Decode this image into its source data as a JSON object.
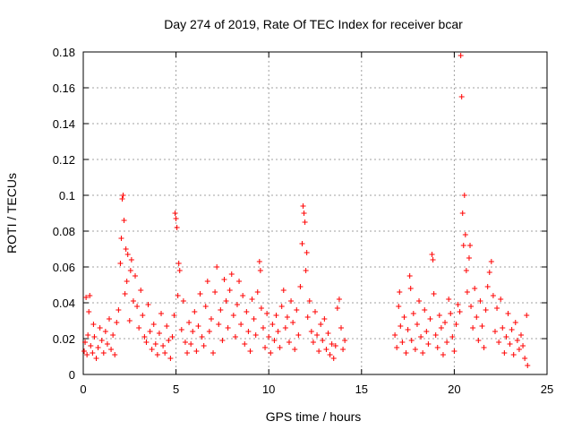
{
  "chart_data": {
    "type": "scatter",
    "title": "Day 274 of 2019, Rate Of TEC Index for receiver bcar",
    "xlabel": "GPS time / hours",
    "ylabel": "ROTI / TECUs",
    "xlim": [
      0,
      25
    ],
    "ylim": [
      0,
      0.18
    ],
    "xticks": [
      0,
      5,
      10,
      15,
      20,
      25
    ],
    "xtick_labels": [
      "0",
      "5",
      "10",
      "15",
      "20",
      "25"
    ],
    "yticks": [
      0,
      0.02,
      0.04,
      0.06,
      0.08,
      0.1,
      0.12,
      0.14,
      0.16,
      0.18
    ],
    "ytick_labels": [
      "0",
      "0.02",
      "0.04",
      "0.06",
      "0.08",
      "0.1",
      "0.12",
      "0.14",
      "0.16",
      "0.18"
    ],
    "grid": true,
    "marker": "plus",
    "color": "#ff0000",
    "data_gap_hours": [
      14.2,
      16.7
    ],
    "series": [
      {
        "name": "ROTI",
        "points": [
          [
            0.05,
            0.013
          ],
          [
            0.1,
            0.018
          ],
          [
            0.15,
            0.043
          ],
          [
            0.2,
            0.011
          ],
          [
            0.25,
            0.022
          ],
          [
            0.3,
            0.035
          ],
          [
            0.35,
            0.044
          ],
          [
            0.4,
            0.016
          ],
          [
            0.5,
            0.012
          ],
          [
            0.55,
            0.028
          ],
          [
            0.6,
            0.021
          ],
          [
            0.7,
            0.009
          ],
          [
            0.8,
            0.015
          ],
          [
            0.9,
            0.026
          ],
          [
            1.0,
            0.019
          ],
          [
            1.1,
            0.012
          ],
          [
            1.2,
            0.024
          ],
          [
            1.3,
            0.017
          ],
          [
            1.4,
            0.031
          ],
          [
            1.5,
            0.014
          ],
          [
            1.6,
            0.022
          ],
          [
            1.7,
            0.011
          ],
          [
            1.8,
            0.029
          ],
          [
            1.9,
            0.036
          ],
          [
            2.0,
            0.062
          ],
          [
            2.05,
            0.076
          ],
          [
            2.1,
            0.098
          ],
          [
            2.15,
            0.1
          ],
          [
            2.2,
            0.086
          ],
          [
            2.25,
            0.045
          ],
          [
            2.3,
            0.07
          ],
          [
            2.35,
            0.052
          ],
          [
            2.4,
            0.067
          ],
          [
            2.5,
            0.03
          ],
          [
            2.55,
            0.058
          ],
          [
            2.6,
            0.064
          ],
          [
            2.7,
            0.041
          ],
          [
            2.8,
            0.055
          ],
          [
            2.9,
            0.038
          ],
          [
            3.0,
            0.026
          ],
          [
            3.1,
            0.047
          ],
          [
            3.2,
            0.033
          ],
          [
            3.3,
            0.021
          ],
          [
            3.4,
            0.018
          ],
          [
            3.5,
            0.039
          ],
          [
            3.6,
            0.024
          ],
          [
            3.7,
            0.014
          ],
          [
            3.8,
            0.028
          ],
          [
            3.9,
            0.017
          ],
          [
            4.0,
            0.011
          ],
          [
            4.1,
            0.023
          ],
          [
            4.2,
            0.034
          ],
          [
            4.3,
            0.016
          ],
          [
            4.4,
            0.012
          ],
          [
            4.5,
            0.027
          ],
          [
            4.6,
            0.019
          ],
          [
            4.7,
            0.009
          ],
          [
            4.8,
            0.021
          ],
          [
            4.9,
            0.033
          ],
          [
            4.95,
            0.09
          ],
          [
            5.0,
            0.087
          ],
          [
            5.05,
            0.082
          ],
          [
            5.1,
            0.044
          ],
          [
            5.15,
            0.062
          ],
          [
            5.2,
            0.058
          ],
          [
            5.3,
            0.025
          ],
          [
            5.4,
            0.041
          ],
          [
            5.5,
            0.018
          ],
          [
            5.6,
            0.012
          ],
          [
            5.7,
            0.029
          ],
          [
            5.8,
            0.017
          ],
          [
            5.9,
            0.024
          ],
          [
            6.0,
            0.035
          ],
          [
            6.1,
            0.013
          ],
          [
            6.2,
            0.027
          ],
          [
            6.3,
            0.045
          ],
          [
            6.4,
            0.021
          ],
          [
            6.5,
            0.016
          ],
          [
            6.6,
            0.038
          ],
          [
            6.7,
            0.052
          ],
          [
            6.8,
            0.024
          ],
          [
            6.9,
            0.031
          ],
          [
            7.0,
            0.012
          ],
          [
            7.1,
            0.046
          ],
          [
            7.2,
            0.06
          ],
          [
            7.3,
            0.028
          ],
          [
            7.4,
            0.036
          ],
          [
            7.5,
            0.019
          ],
          [
            7.6,
            0.053
          ],
          [
            7.7,
            0.041
          ],
          [
            7.8,
            0.026
          ],
          [
            7.9,
            0.047
          ],
          [
            8.0,
            0.056
          ],
          [
            8.1,
            0.033
          ],
          [
            8.2,
            0.021
          ],
          [
            8.3,
            0.039
          ],
          [
            8.4,
            0.052
          ],
          [
            8.5,
            0.028
          ],
          [
            8.6,
            0.044
          ],
          [
            8.7,
            0.017
          ],
          [
            8.8,
            0.035
          ],
          [
            8.9,
            0.024
          ],
          [
            9.0,
            0.013
          ],
          [
            9.1,
            0.042
          ],
          [
            9.2,
            0.031
          ],
          [
            9.3,
            0.022
          ],
          [
            9.4,
            0.046
          ],
          [
            9.5,
            0.063
          ],
          [
            9.55,
            0.058
          ],
          [
            9.6,
            0.037
          ],
          [
            9.7,
            0.026
          ],
          [
            9.8,
            0.015
          ],
          [
            9.9,
            0.034
          ],
          [
            10.0,
            0.021
          ],
          [
            10.1,
            0.012
          ],
          [
            10.2,
            0.028
          ],
          [
            10.3,
            0.019
          ],
          [
            10.4,
            0.033
          ],
          [
            10.5,
            0.024
          ],
          [
            10.6,
            0.015
          ],
          [
            10.7,
            0.038
          ],
          [
            10.8,
            0.047
          ],
          [
            10.9,
            0.026
          ],
          [
            11.0,
            0.032
          ],
          [
            11.1,
            0.018
          ],
          [
            11.2,
            0.041
          ],
          [
            11.3,
            0.029
          ],
          [
            11.4,
            0.014
          ],
          [
            11.5,
            0.036
          ],
          [
            11.6,
            0.022
          ],
          [
            11.7,
            0.049
          ],
          [
            11.8,
            0.073
          ],
          [
            11.85,
            0.094
          ],
          [
            11.9,
            0.09
          ],
          [
            11.95,
            0.085
          ],
          [
            12.0,
            0.058
          ],
          [
            12.05,
            0.068
          ],
          [
            12.1,
            0.032
          ],
          [
            12.2,
            0.041
          ],
          [
            12.3,
            0.024
          ],
          [
            12.4,
            0.018
          ],
          [
            12.5,
            0.035
          ],
          [
            12.6,
            0.022
          ],
          [
            12.7,
            0.013
          ],
          [
            12.8,
            0.028
          ],
          [
            12.9,
            0.019
          ],
          [
            13.0,
            0.031
          ],
          [
            13.1,
            0.014
          ],
          [
            13.2,
            0.023
          ],
          [
            13.3,
            0.011
          ],
          [
            13.4,
            0.017
          ],
          [
            13.5,
            0.009
          ],
          [
            13.6,
            0.016
          ],
          [
            13.7,
            0.037
          ],
          [
            13.8,
            0.042
          ],
          [
            13.9,
            0.026
          ],
          [
            14.0,
            0.014
          ],
          [
            14.1,
            0.019
          ],
          [
            16.8,
            0.022
          ],
          [
            16.9,
            0.015
          ],
          [
            17.0,
            0.038
          ],
          [
            17.05,
            0.046
          ],
          [
            17.1,
            0.027
          ],
          [
            17.2,
            0.018
          ],
          [
            17.3,
            0.032
          ],
          [
            17.4,
            0.012
          ],
          [
            17.5,
            0.025
          ],
          [
            17.6,
            0.055
          ],
          [
            17.65,
            0.048
          ],
          [
            17.7,
            0.019
          ],
          [
            17.8,
            0.034
          ],
          [
            17.9,
            0.014
          ],
          [
            18.0,
            0.028
          ],
          [
            18.1,
            0.041
          ],
          [
            18.2,
            0.021
          ],
          [
            18.3,
            0.012
          ],
          [
            18.4,
            0.036
          ],
          [
            18.5,
            0.024
          ],
          [
            18.6,
            0.017
          ],
          [
            18.7,
            0.031
          ],
          [
            18.8,
            0.067
          ],
          [
            18.85,
            0.064
          ],
          [
            18.9,
            0.045
          ],
          [
            19.0,
            0.022
          ],
          [
            19.1,
            0.015
          ],
          [
            19.2,
            0.033
          ],
          [
            19.3,
            0.026
          ],
          [
            19.4,
            0.011
          ],
          [
            19.5,
            0.029
          ],
          [
            19.6,
            0.018
          ],
          [
            19.7,
            0.042
          ],
          [
            19.8,
            0.034
          ],
          [
            19.9,
            0.021
          ],
          [
            20.0,
            0.013
          ],
          [
            20.1,
            0.028
          ],
          [
            20.2,
            0.039
          ],
          [
            20.3,
            0.035
          ],
          [
            20.35,
            0.178
          ],
          [
            20.4,
            0.155
          ],
          [
            20.45,
            0.09
          ],
          [
            20.5,
            0.072
          ],
          [
            20.55,
            0.1
          ],
          [
            20.6,
            0.078
          ],
          [
            20.65,
            0.058
          ],
          [
            20.7,
            0.046
          ],
          [
            20.8,
            0.065
          ],
          [
            20.85,
            0.072
          ],
          [
            20.9,
            0.038
          ],
          [
            21.0,
            0.026
          ],
          [
            21.1,
            0.048
          ],
          [
            21.2,
            0.032
          ],
          [
            21.3,
            0.019
          ],
          [
            21.4,
            0.041
          ],
          [
            21.5,
            0.027
          ],
          [
            21.6,
            0.015
          ],
          [
            21.7,
            0.036
          ],
          [
            21.8,
            0.049
          ],
          [
            21.9,
            0.057
          ],
          [
            22.0,
            0.063
          ],
          [
            22.1,
            0.044
          ],
          [
            22.2,
            0.024
          ],
          [
            22.3,
            0.037
          ],
          [
            22.4,
            0.018
          ],
          [
            22.5,
            0.042
          ],
          [
            22.6,
            0.026
          ],
          [
            22.7,
            0.012
          ],
          [
            22.8,
            0.021
          ],
          [
            22.9,
            0.034
          ],
          [
            23.0,
            0.017
          ],
          [
            23.1,
            0.025
          ],
          [
            23.2,
            0.011
          ],
          [
            23.3,
            0.029
          ],
          [
            23.4,
            0.019
          ],
          [
            23.5,
            0.014
          ],
          [
            23.6,
            0.022
          ],
          [
            23.7,
            0.016
          ],
          [
            23.8,
            0.009
          ],
          [
            23.9,
            0.033
          ],
          [
            23.95,
            0.005
          ]
        ]
      }
    ]
  }
}
